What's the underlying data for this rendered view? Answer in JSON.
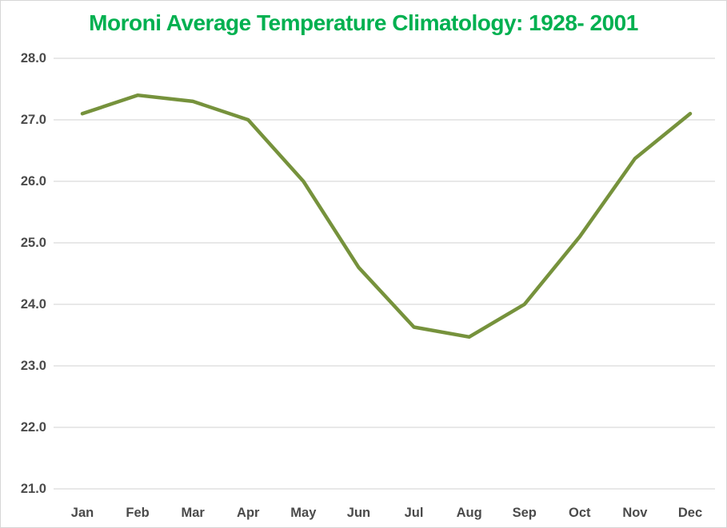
{
  "chart_data": {
    "type": "line",
    "title": "Moroni Average Temperature Climatology: 1928- 2001",
    "categories": [
      "Jan",
      "Feb",
      "Mar",
      "Apr",
      "May",
      "Jun",
      "Jul",
      "Aug",
      "Sep",
      "Oct",
      "Nov",
      "Dec"
    ],
    "values": [
      27.1,
      27.4,
      27.3,
      27.0,
      26.0,
      24.6,
      23.63,
      23.47,
      24.0,
      25.1,
      26.37,
      27.1
    ],
    "xlabel": "",
    "ylabel": "",
    "ylim": [
      21.0,
      28.0
    ],
    "ytick_step": 1.0,
    "ytick_decimals": 1,
    "ytick_labels": [
      "28.0",
      "27.0",
      "26.0",
      "25.0",
      "24.0",
      "23.0",
      "22.0",
      "21.0"
    ],
    "grid": "horizontal",
    "legend": "none"
  },
  "colors": {
    "title": "#00B050",
    "line": "#76923C",
    "axis_text": "#4A4A4A",
    "gridline": "#D9D9D9",
    "border": "#D6D6D6",
    "background": "#FFFFFF"
  }
}
